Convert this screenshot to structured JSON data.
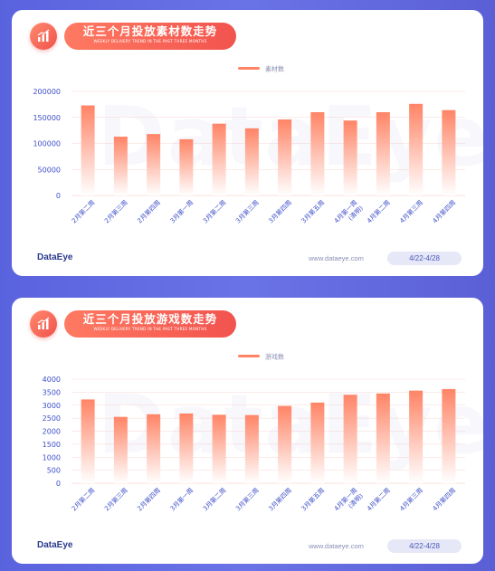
{
  "colors": {
    "bar_top": "#ff8466",
    "bar_bottom": "#ffffff",
    "axis_text": "#3d4fc8",
    "grid": "#f2b6ae",
    "title_pill": "#f25a50"
  },
  "icons": {
    "badge": "bar-chart-trend-icon"
  },
  "cards": [
    {
      "title": "近三个月投放素材数走势",
      "subtitle": "WEEKLY DELIVERY TREND IN THE PAST THREE MONTHS",
      "footer": {
        "logo": "DataEye",
        "url": "www.dataeye.com",
        "date_range": "4/22-4/28"
      }
    },
    {
      "title": "近三个月投放游戏数走势",
      "subtitle": "WEEKLY DELIVERY TREND IN THE PAST THREE MONTHS",
      "footer": {
        "logo": "DataEye",
        "url": "www.dataeye.com",
        "date_range": "4/22-4/28"
      }
    }
  ],
  "chart_data": [
    {
      "type": "bar",
      "title": "近三个月投放素材数走势",
      "legend": "素材数",
      "legend_position": "top-center",
      "categories": [
        "2月第二周",
        "2月第三周",
        "2月第四周",
        "3月第一周",
        "3月第二周",
        "3月第三周",
        "3月第四周",
        "3月第五周",
        "4月第一周\n(清明)",
        "4月第二周",
        "4月第三周",
        "4月第四周"
      ],
      "series": [
        {
          "name": "素材数",
          "values": [
            173000,
            113000,
            118000,
            108000,
            138000,
            129000,
            146000,
            160000,
            144000,
            160000,
            176000,
            164000
          ]
        }
      ],
      "ylim": [
        0,
        200000
      ],
      "yticks": [
        0,
        50000,
        100000,
        150000,
        200000
      ],
      "grid": true
    },
    {
      "type": "bar",
      "title": "近三个月投放游戏数走势",
      "legend": "游戏数",
      "legend_position": "top-center",
      "categories": [
        "2月第二周",
        "2月第三周",
        "2月第四周",
        "3月第一周",
        "3月第二周",
        "3月第三周",
        "3月第四周",
        "3月第五周",
        "4月第一周\n(清明)",
        "4月第二周",
        "4月第三周",
        "4月第四周"
      ],
      "series": [
        {
          "name": "游戏数",
          "values": [
            3220,
            2550,
            2650,
            2680,
            2630,
            2620,
            2970,
            3100,
            3400,
            3450,
            3560,
            3620
          ]
        }
      ],
      "ylim": [
        0,
        4000
      ],
      "yticks": [
        0,
        500,
        1000,
        1500,
        2000,
        2500,
        3000,
        3500,
        4000
      ],
      "grid": true
    }
  ]
}
